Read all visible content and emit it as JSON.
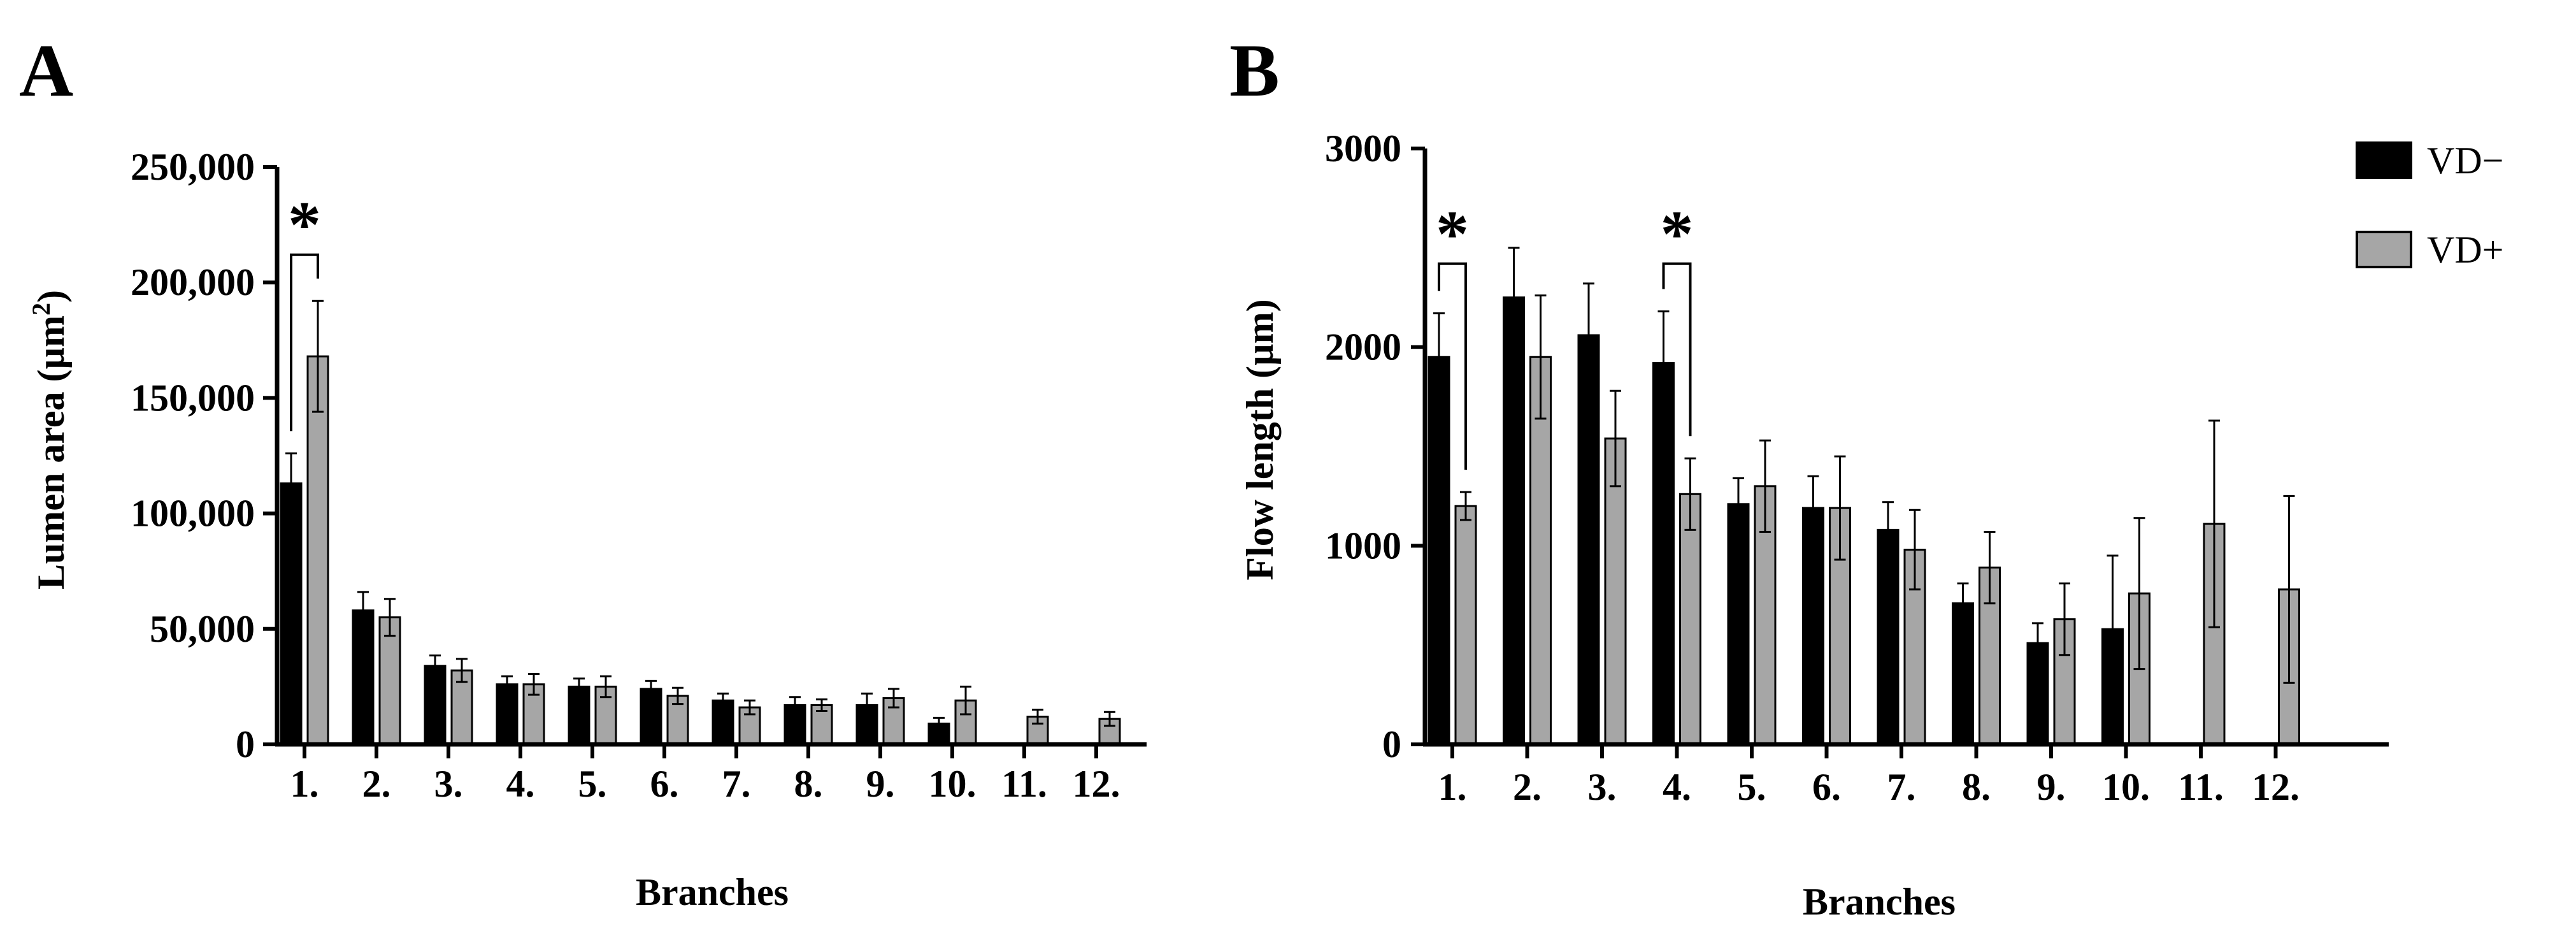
{
  "series_style": [
    {
      "name": "VD−",
      "color": "#000000"
    },
    {
      "name": "VD+",
      "color": "#a6a6a6"
    }
  ],
  "legend": {
    "position": "top-right",
    "entries": [
      "VD−",
      "VD+"
    ]
  },
  "chart_data": [
    {
      "type": "bar",
      "panel": "A",
      "title": "",
      "xlabel": "Branches",
      "ylabel": "Lumen area (µm²)",
      "ylabel_parts": {
        "text": "Lumen area (µm",
        "superscript": "2",
        "close": ")"
      },
      "ylim": [
        0,
        250000
      ],
      "yticks": [
        0,
        50000,
        100000,
        150000,
        200000,
        250000
      ],
      "ytick_labels": [
        "0",
        "50,000",
        "100,000",
        "150,000",
        "200,000",
        "250,000"
      ],
      "categories": [
        "1.",
        "2.",
        "3.",
        "4.",
        "5.",
        "6.",
        "7.",
        "8.",
        "9.",
        "10.",
        "11.",
        "12."
      ],
      "series": [
        {
          "name": "VD−",
          "values": [
            113000,
            58000,
            34000,
            26000,
            25000,
            24000,
            19000,
            17000,
            17000,
            9000,
            null,
            null
          ],
          "errors": [
            13000,
            8000,
            4500,
            3500,
            3500,
            3500,
            3000,
            3500,
            5000,
            2500,
            null,
            null
          ]
        },
        {
          "name": "VD+",
          "values": [
            168000,
            55000,
            32000,
            26000,
            25000,
            21000,
            16000,
            17000,
            20000,
            19000,
            12000,
            11000
          ],
          "errors": [
            24000,
            8000,
            5000,
            4500,
            4500,
            3500,
            3000,
            2500,
            4000,
            6000,
            3000,
            3000
          ]
        }
      ],
      "significance": [
        {
          "category": "1.",
          "label": "*",
          "bracket_top": 212000
        }
      ]
    },
    {
      "type": "bar",
      "panel": "B",
      "title": "",
      "xlabel": "Branches",
      "ylabel": "Flow length (µm)",
      "ylim": [
        0,
        3000
      ],
      "yticks": [
        0,
        1000,
        2000,
        3000
      ],
      "ytick_labels": [
        "0",
        "1000",
        "2000",
        "3000"
      ],
      "categories": [
        "1.",
        "2.",
        "3.",
        "4.",
        "5.",
        "6.",
        "7.",
        "8.",
        "9.",
        "10.",
        "11.",
        "12."
      ],
      "series": [
        {
          "name": "VD−",
          "values": [
            1950,
            2250,
            2060,
            1920,
            1210,
            1190,
            1080,
            710,
            510,
            580,
            null,
            null
          ],
          "errors": [
            220,
            250,
            260,
            260,
            130,
            160,
            140,
            100,
            100,
            370,
            null,
            null
          ]
        },
        {
          "name": "VD+",
          "values": [
            1200,
            1950,
            1540,
            1260,
            1300,
            1190,
            980,
            890,
            630,
            760,
            1110,
            780
          ],
          "errors": [
            70,
            310,
            240,
            180,
            230,
            260,
            200,
            180,
            180,
            380,
            520,
            470
          ]
        }
      ],
      "significance": [
        {
          "category": "1.",
          "label": "*",
          "bracket_top": 2420
        },
        {
          "category": "4.",
          "label": "*",
          "bracket_top": 2420
        }
      ]
    }
  ]
}
